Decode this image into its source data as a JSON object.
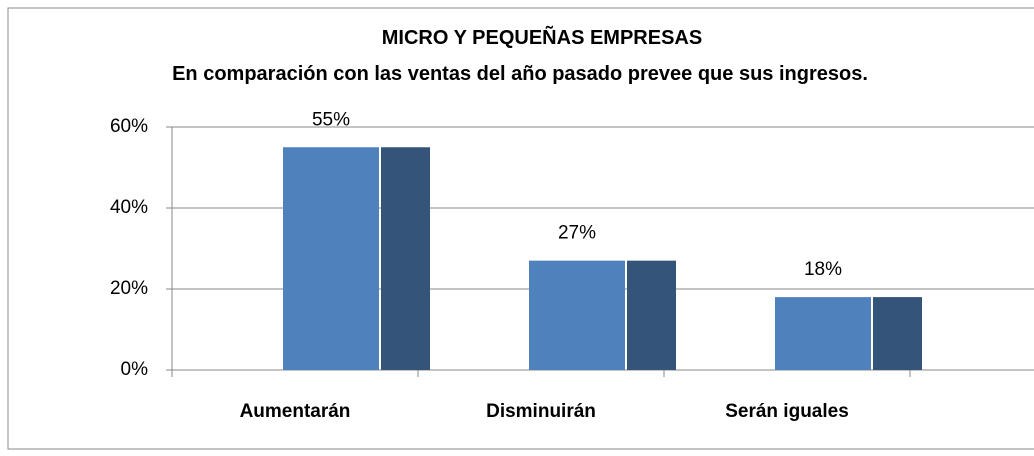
{
  "chart_data": {
    "type": "bar",
    "title": "MICRO Y PEQUEÑAS EMPRESAS",
    "subtitle": "En comparación con las ventas del año pasado prevee que sus ingresos.",
    "categories": [
      "Aumentarán",
      "Disminuirán",
      "Serán iguales"
    ],
    "values": [
      55,
      27,
      18
    ],
    "value_labels": [
      "55%",
      "27%",
      "18%"
    ],
    "color": "#4f81bd",
    "ylim": [
      0,
      60
    ],
    "yticks": [
      {
        "value": 0,
        "label": "0%"
      },
      {
        "value": 20,
        "label": "20%"
      },
      {
        "value": 40,
        "label": "40%"
      },
      {
        "value": 60,
        "label": "60%"
      }
    ],
    "grid": true
  }
}
